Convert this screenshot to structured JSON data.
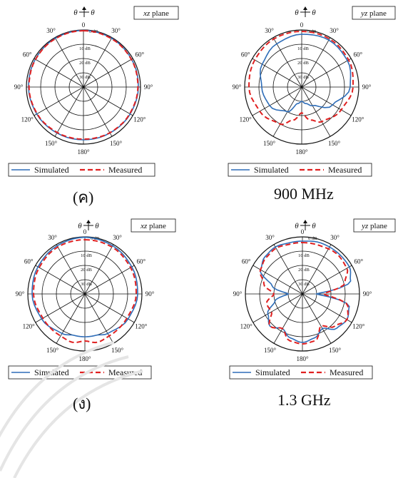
{
  "figure": {
    "captions": [
      "(ค)",
      "900 MHz",
      "(ง)",
      "1.3 GHz"
    ],
    "panel_labels": {
      "theta_left": "θ",
      "theta_right": "θ",
      "zero_angle": "0",
      "zero_db": "0 dB"
    }
  },
  "chart_data": [
    {
      "type": "polar-line",
      "plane_label": "xz plane",
      "angle_ticks": [
        "0",
        "30",
        "60",
        "90",
        "120",
        "150",
        "180",
        "150",
        "120",
        "90",
        "60",
        "30"
      ],
      "angle_positions_deg": [
        0,
        30,
        60,
        90,
        120,
        150,
        180,
        210,
        240,
        270,
        300,
        330
      ],
      "radial_ticks": [
        "10 dB",
        "20 dB",
        "30 dB"
      ],
      "radial_range_db": [
        -40,
        0
      ],
      "legend": [
        "Simulated",
        "Measured"
      ],
      "series": [
        {
          "name": "Simulated",
          "color": "#2e6db8",
          "dash": "solid",
          "angles_deg": [
            0,
            30,
            60,
            90,
            120,
            150,
            180,
            210,
            240,
            270,
            300,
            330
          ],
          "values_db": [
            -0.3,
            -0.5,
            -1.0,
            -1.5,
            -2.2,
            -2.8,
            -3.0,
            -2.8,
            -2.2,
            -1.5,
            -1.0,
            -0.5
          ]
        },
        {
          "name": "Measured",
          "color": "#e02020",
          "dash": "dashed",
          "angles_deg": [
            0,
            30,
            60,
            90,
            120,
            150,
            180,
            210,
            240,
            270,
            300,
            330
          ],
          "values_db": [
            -0.5,
            -0.8,
            -1.2,
            -1.8,
            -2.5,
            -3.0,
            -3.5,
            -3.2,
            -2.5,
            -1.8,
            -1.2,
            -0.8
          ]
        }
      ]
    },
    {
      "type": "polar-line",
      "plane_label": "yz plane",
      "angle_ticks": [
        "0",
        "30",
        "60",
        "90",
        "120",
        "150",
        "180",
        "150",
        "120",
        "90",
        "60",
        "30"
      ],
      "angle_positions_deg": [
        0,
        30,
        60,
        90,
        120,
        150,
        180,
        210,
        240,
        270,
        300,
        330
      ],
      "radial_ticks": [
        "10 dB",
        "20 dB",
        "30 dB"
      ],
      "radial_range_db": [
        -40,
        0
      ],
      "legend": [
        "Simulated",
        "Measured"
      ],
      "series": [
        {
          "name": "Simulated",
          "color": "#2e6db8",
          "dash": "solid",
          "angles_deg": [
            0,
            30,
            60,
            90,
            120,
            150,
            165,
            180,
            195,
            210,
            240,
            270,
            300,
            330
          ],
          "values_db": [
            -3,
            -2,
            -3,
            -6,
            -15,
            -25,
            -28,
            -30,
            -28,
            -20,
            -14,
            -12,
            -8,
            -5
          ]
        },
        {
          "name": "Measured",
          "color": "#e02020",
          "dash": "dashed",
          "angles_deg": [
            0,
            30,
            60,
            90,
            120,
            150,
            165,
            180,
            195,
            210,
            240,
            270,
            300,
            330
          ],
          "values_db": [
            -1,
            -1,
            -2,
            -4,
            -8,
            -12,
            -16,
            -22,
            -16,
            -10,
            -6,
            -3,
            -2,
            -1
          ]
        }
      ]
    },
    {
      "type": "polar-line",
      "plane_label": "xz plane",
      "angle_ticks": [
        "0",
        "30",
        "60",
        "90",
        "120",
        "150",
        "180",
        "150",
        "120",
        "90",
        "60",
        "30"
      ],
      "angle_positions_deg": [
        0,
        30,
        60,
        90,
        120,
        150,
        180,
        210,
        240,
        270,
        300,
        330
      ],
      "radial_ticks": [
        "10 dB",
        "20 dB",
        "30 dB"
      ],
      "radial_range_db": [
        -40,
        0
      ],
      "legend": [
        "Simulated",
        "Measured"
      ],
      "series": [
        {
          "name": "Simulated",
          "color": "#2e6db8",
          "dash": "solid",
          "angles_deg": [
            0,
            30,
            60,
            90,
            120,
            150,
            165,
            180,
            195,
            210,
            240,
            270,
            300,
            330
          ],
          "values_db": [
            -0.3,
            -1,
            -2,
            -3,
            -5,
            -8,
            -10,
            -10,
            -10,
            -8,
            -5,
            -3,
            -2,
            -1
          ]
        },
        {
          "name": "Measured",
          "color": "#e02020",
          "dash": "dashed",
          "angles_deg": [
            0,
            30,
            60,
            90,
            120,
            150,
            165,
            180,
            195,
            210,
            240,
            270,
            300,
            330
          ],
          "values_db": [
            -2,
            -2,
            -3,
            -4,
            -6,
            -6,
            -5,
            -7,
            -5,
            -6,
            -6,
            -4,
            -3,
            -2
          ]
        }
      ]
    },
    {
      "type": "polar-line",
      "plane_label": "yz plane",
      "angle_ticks": [
        "0",
        "30",
        "60",
        "90",
        "120",
        "150",
        "180",
        "150",
        "120",
        "90",
        "60",
        "30"
      ],
      "angle_positions_deg": [
        0,
        30,
        60,
        90,
        120,
        150,
        180,
        210,
        240,
        270,
        300,
        330
      ],
      "radial_ticks": [
        "10 dB",
        "20 dB",
        "30 dB"
      ],
      "radial_range_db": [
        -40,
        0
      ],
      "legend": [
        "Simulated",
        "Measured"
      ],
      "series": [
        {
          "name": "Simulated",
          "color": "#2e6db8",
          "dash": "solid",
          "angles_deg": [
            0,
            20,
            40,
            60,
            75,
            90,
            105,
            120,
            135,
            150,
            165,
            180,
            195,
            210,
            225,
            240,
            255,
            270,
            285,
            300,
            315,
            330,
            345
          ],
          "values_db": [
            -3,
            -2,
            -2,
            -2,
            -5,
            -30,
            -6,
            -4,
            -6,
            -12,
            -8,
            -6,
            -8,
            -12,
            -8,
            -12,
            -20,
            -30,
            -18,
            -6,
            -3,
            -2,
            -3
          ]
        },
        {
          "name": "Measured",
          "color": "#e02020",
          "dash": "dashed",
          "angles_deg": [
            0,
            20,
            40,
            60,
            75,
            90,
            105,
            120,
            135,
            150,
            165,
            180,
            195,
            210,
            225,
            240,
            255,
            270,
            285,
            300,
            315,
            330,
            345
          ],
          "values_db": [
            -4,
            -4,
            -3,
            -4,
            -9,
            -25,
            -7,
            -4,
            -8,
            -14,
            -6,
            -5,
            -6,
            -12,
            -8,
            -15,
            -14,
            -20,
            -12,
            -6,
            -4,
            -3,
            -4
          ]
        }
      ]
    }
  ]
}
